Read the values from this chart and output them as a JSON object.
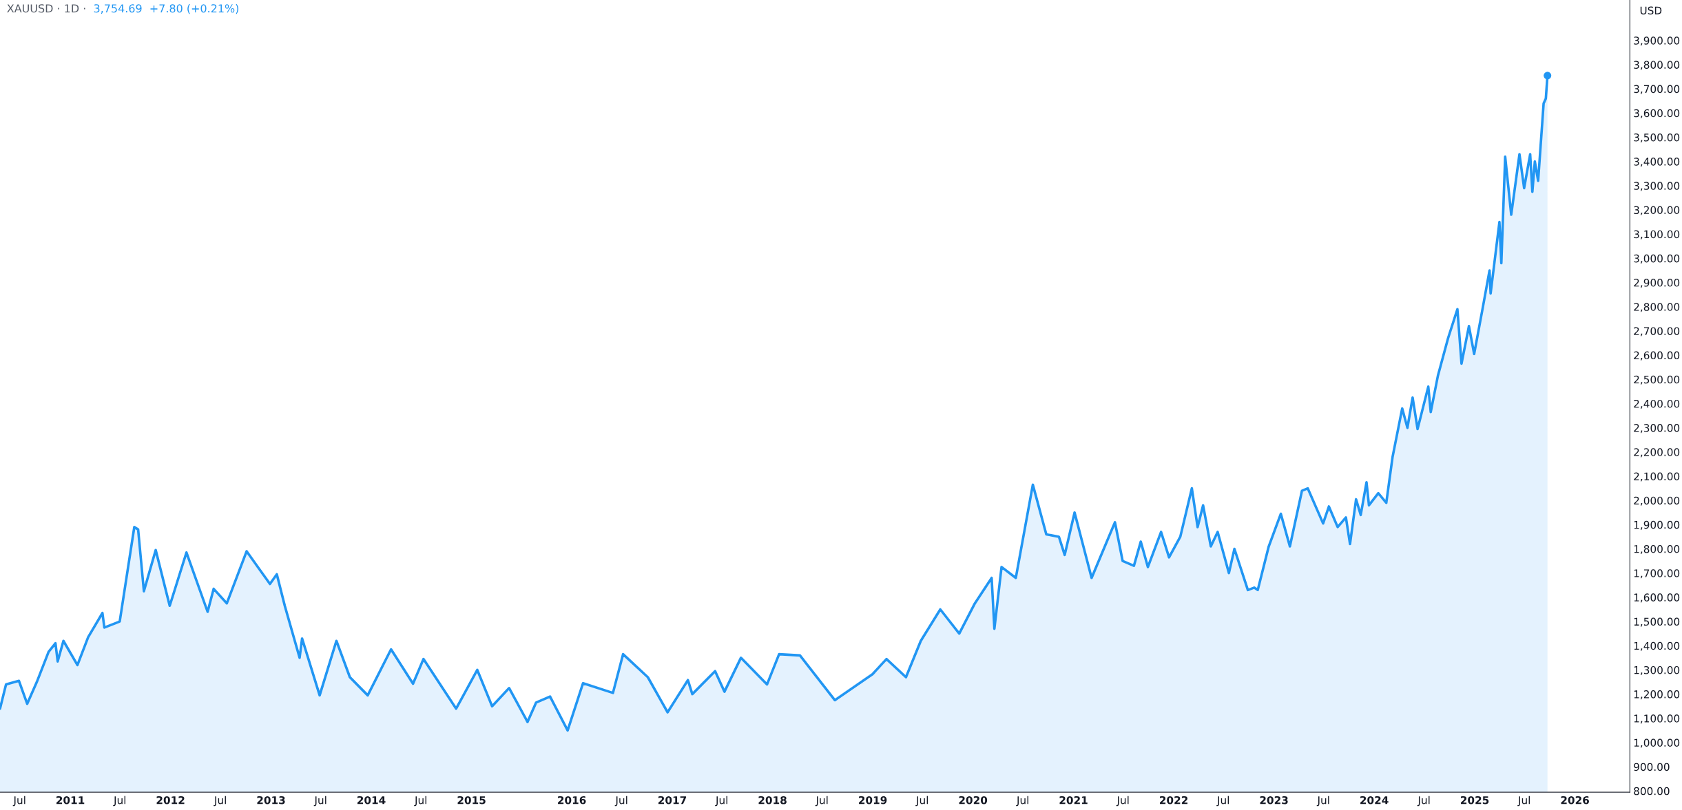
{
  "chart_data": {
    "type": "area",
    "title": "XAUUSD · 1D ·",
    "subtitle": "3,754.69  +7.80 (+0.21%)",
    "ylabel": "USD",
    "x": [
      "2010-04-20",
      "2010-05-12",
      "2010-06-28",
      "2010-07-28",
      "2010-09-01",
      "2010-10-14",
      "2010-11-08",
      "2010-11-16",
      "2010-12-07",
      "2011-01-27",
      "2011-03-07",
      "2011-04-28",
      "2011-05-05",
      "2011-06-30",
      "2011-08-22",
      "2011-09-05",
      "2011-09-26",
      "2011-11-08",
      "2011-12-29",
      "2012-02-28",
      "2012-05-15",
      "2012-06-06",
      "2012-07-24",
      "2012-10-04",
      "2012-11-14",
      "2012-12-28",
      "2013-01-22",
      "2013-02-20",
      "2013-04-15",
      "2013-04-24",
      "2013-06-27",
      "2013-08-27",
      "2013-10-15",
      "2013-12-19",
      "2014-03-14",
      "2014-06-02",
      "2014-07-10",
      "2014-11-06",
      "2015-01-22",
      "2015-03-17",
      "2015-05-18",
      "2015-07-24",
      "2015-08-24",
      "2015-10-14",
      "2015-12-17",
      "2016-02-11",
      "2016-05-30",
      "2016-07-06",
      "2016-10-04",
      "2016-12-15",
      "2017-02-27",
      "2017-03-15",
      "2017-06-06",
      "2017-07-10",
      "2017-09-08",
      "2017-12-12",
      "2018-01-25",
      "2018-04-11",
      "2018-08-16",
      "2018-12-31",
      "2019-02-20",
      "2019-05-02",
      "2019-06-25",
      "2019-09-04",
      "2019-11-12",
      "2020-01-08",
      "2020-03-09",
      "2020-03-19",
      "2020-04-14",
      "2020-06-05",
      "2020-08-06",
      "2020-09-24",
      "2020-11-09",
      "2020-11-30",
      "2021-01-05",
      "2021-03-08",
      "2021-06-01",
      "2021-06-29",
      "2021-08-09",
      "2021-09-03",
      "2021-09-29",
      "2021-11-16",
      "2021-12-15",
      "2022-01-25",
      "2022-03-08",
      "2022-03-29",
      "2022-04-18",
      "2022-05-16",
      "2022-06-10",
      "2022-07-21",
      "2022-08-10",
      "2022-09-28",
      "2022-10-21",
      "2022-11-03",
      "2022-12-13",
      "2023-01-26",
      "2023-02-28",
      "2023-04-13",
      "2023-05-04",
      "2023-06-29",
      "2023-07-20",
      "2023-08-21",
      "2023-09-20",
      "2023-10-05",
      "2023-10-27",
      "2023-11-13",
      "2023-12-04",
      "2023-12-13",
      "2024-01-16",
      "2024-02-14",
      "2024-03-08",
      "2024-04-12",
      "2024-05-01",
      "2024-05-20",
      "2024-06-07",
      "2024-07-16",
      "2024-07-25",
      "2024-08-20",
      "2024-09-26",
      "2024-10-30",
      "2024-11-14",
      "2024-12-11",
      "2024-12-30",
      "2025-01-31",
      "2025-02-24",
      "2025-02-28",
      "2025-04-01",
      "2025-04-08",
      "2025-04-22",
      "2025-05-14",
      "2025-06-13",
      "2025-06-30",
      "2025-07-22",
      "2025-07-30",
      "2025-08-08",
      "2025-08-20",
      "2025-09-09",
      "2025-09-17",
      "2025-09-23"
    ],
    "series": [
      {
        "color": "#2196f3",
        "values": [
          1140,
          1240,
          1255,
          1160,
          1250,
          1375,
          1410,
          1335,
          1420,
          1320,
          1435,
          1535,
          1475,
          1500,
          1890,
          1880,
          1625,
          1795,
          1565,
          1785,
          1540,
          1635,
          1575,
          1790,
          1725,
          1655,
          1695,
          1565,
          1350,
          1430,
          1195,
          1420,
          1270,
          1195,
          1385,
          1243,
          1345,
          1140,
          1300,
          1150,
          1225,
          1085,
          1165,
          1190,
          1050,
          1245,
          1205,
          1365,
          1270,
          1125,
          1258,
          1200,
          1295,
          1210,
          1350,
          1240,
          1365,
          1360,
          1175,
          1282,
          1345,
          1270,
          1420,
          1550,
          1450,
          1575,
          1680,
          1470,
          1725,
          1680,
          2065,
          1860,
          1850,
          1775,
          1950,
          1680,
          1910,
          1750,
          1730,
          1830,
          1725,
          1870,
          1765,
          1850,
          2050,
          1890,
          1980,
          1810,
          1870,
          1700,
          1800,
          1630,
          1640,
          1630,
          1810,
          1945,
          1810,
          2040,
          2050,
          1905,
          1975,
          1890,
          1930,
          1820,
          2005,
          1940,
          2075,
          1980,
          2030,
          1990,
          2180,
          2380,
          2300,
          2425,
          2295,
          2470,
          2365,
          2515,
          2670,
          2790,
          2565,
          2720,
          2605,
          2800,
          2950,
          2855,
          3150,
          2980,
          3420,
          3180,
          3430,
          3290,
          3430,
          3275,
          3400,
          3320,
          3640,
          3660,
          3754.69
        ]
      }
    ],
    "xlim": [
      "2010-04-20",
      "2026-07-20"
    ],
    "xticks": [
      {
        "value": "2010-07-01",
        "label": "Jul"
      },
      {
        "value": "2011-01-01",
        "label": "2011"
      },
      {
        "value": "2011-07-01",
        "label": "Jul"
      },
      {
        "value": "2012-01-01",
        "label": "2012"
      },
      {
        "value": "2012-07-01",
        "label": "Jul"
      },
      {
        "value": "2013-01-01",
        "label": "2013"
      },
      {
        "value": "2013-07-01",
        "label": "Jul"
      },
      {
        "value": "2014-01-01",
        "label": "2014"
      },
      {
        "value": "2014-07-01",
        "label": "Jul"
      },
      {
        "value": "2015-01-01",
        "label": "2015"
      },
      {
        "value": "2016-01-01",
        "label": "2016"
      },
      {
        "value": "2016-07-01",
        "label": "Jul"
      },
      {
        "value": "2017-01-01",
        "label": "2017"
      },
      {
        "value": "2017-07-01",
        "label": "Jul"
      },
      {
        "value": "2018-01-01",
        "label": "2018"
      },
      {
        "value": "2018-07-01",
        "label": "Jul"
      },
      {
        "value": "2019-01-01",
        "label": "2019"
      },
      {
        "value": "2019-07-01",
        "label": "Jul"
      },
      {
        "value": "2020-01-01",
        "label": "2020"
      },
      {
        "value": "2020-07-01",
        "label": "Jul"
      },
      {
        "value": "2021-01-01",
        "label": "2021"
      },
      {
        "value": "2021-07-01",
        "label": "Jul"
      },
      {
        "value": "2022-01-01",
        "label": "2022"
      },
      {
        "value": "2022-07-01",
        "label": "Jul"
      },
      {
        "value": "2023-01-01",
        "label": "2023"
      },
      {
        "value": "2023-07-01",
        "label": "Jul"
      },
      {
        "value": "2024-01-01",
        "label": "2024"
      },
      {
        "value": "2024-07-01",
        "label": "Jul"
      },
      {
        "value": "2025-01-01",
        "label": "2025"
      },
      {
        "value": "2025-07-01",
        "label": "Jul"
      },
      {
        "value": "2026-01-01",
        "label": "2026"
      }
    ],
    "ylim": [
      795,
      4067
    ],
    "yticks": [
      {
        "value": 800,
        "label": "800.00"
      },
      {
        "value": 900,
        "label": "900.00"
      },
      {
        "value": 1000,
        "label": "1,000.00"
      },
      {
        "value": 1100,
        "label": "1,100.00"
      },
      {
        "value": 1200,
        "label": "1,200.00"
      },
      {
        "value": 1300,
        "label": "1,300.00"
      },
      {
        "value": 1400,
        "label": "1,400.00"
      },
      {
        "value": 1500,
        "label": "1,500.00"
      },
      {
        "value": 1600,
        "label": "1,600.00"
      },
      {
        "value": 1700,
        "label": "1,700.00"
      },
      {
        "value": 1800,
        "label": "1,800.00"
      },
      {
        "value": 1900,
        "label": "1,900.00"
      },
      {
        "value": 2000,
        "label": "2,000.00"
      },
      {
        "value": 2100,
        "label": "2,100.00"
      },
      {
        "value": 2200,
        "label": "2,200.00"
      },
      {
        "value": 2300,
        "label": "2,300.00"
      },
      {
        "value": 2400,
        "label": "2,400.00"
      },
      {
        "value": 2500,
        "label": "2,500.00"
      },
      {
        "value": 2600,
        "label": "2,600.00"
      },
      {
        "value": 2700,
        "label": "2,700.00"
      },
      {
        "value": 2800,
        "label": "2,800.00"
      },
      {
        "value": 2900,
        "label": "2,900.00"
      },
      {
        "value": 3000,
        "label": "3,000.00"
      },
      {
        "value": 3100,
        "label": "3,100.00"
      },
      {
        "value": 3200,
        "label": "3,200.00"
      },
      {
        "value": 3300,
        "label": "3,300.00"
      },
      {
        "value": 3400,
        "label": "3,400.00"
      },
      {
        "value": 3500,
        "label": "3,500.00"
      },
      {
        "value": 3600,
        "label": "3,600.00"
      },
      {
        "value": 3700,
        "label": "3,700.00"
      },
      {
        "value": 3800,
        "label": "3,800.00"
      },
      {
        "value": 3900,
        "label": "3,900.00"
      }
    ],
    "grid": false,
    "legend": false
  }
}
